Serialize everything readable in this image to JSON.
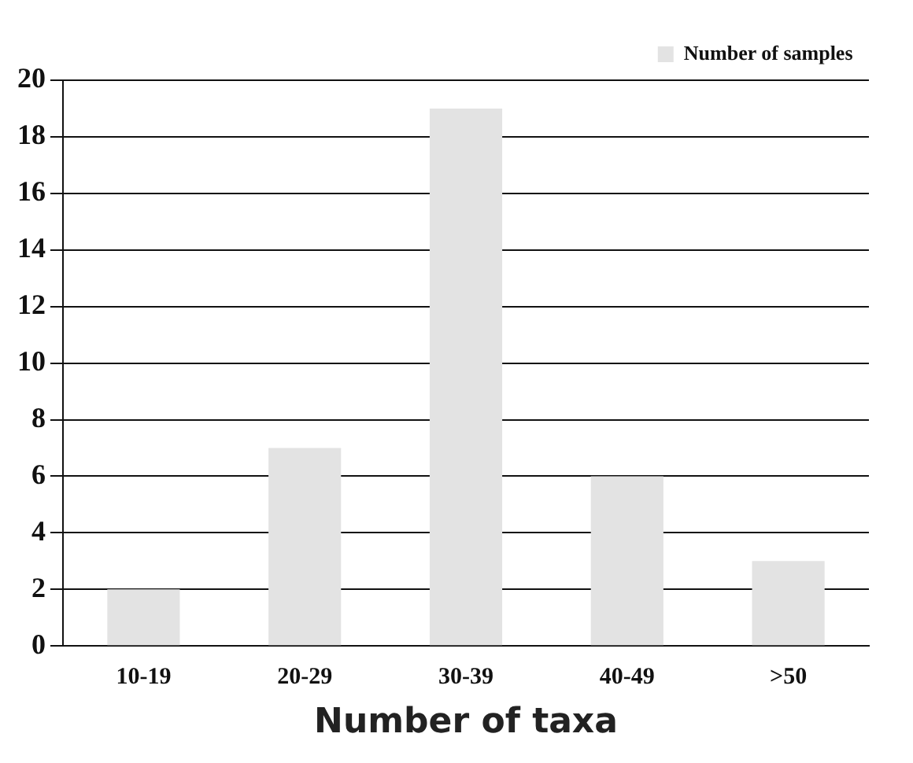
{
  "chart_data": {
    "type": "bar",
    "xlabel": "Number of taxa",
    "categories": [
      "10-19",
      "20-29",
      "30-39",
      "40-49",
      ">50"
    ],
    "series": [
      {
        "name": "Number of samples",
        "color": "#e3e3e3",
        "values": [
          2,
          7,
          19,
          6,
          3
        ]
      }
    ],
    "ylim": [
      0,
      20
    ],
    "yticks": [
      0,
      2,
      4,
      6,
      8,
      10,
      12,
      14,
      16,
      18,
      20
    ],
    "grid": "y",
    "legend": "top right"
  }
}
